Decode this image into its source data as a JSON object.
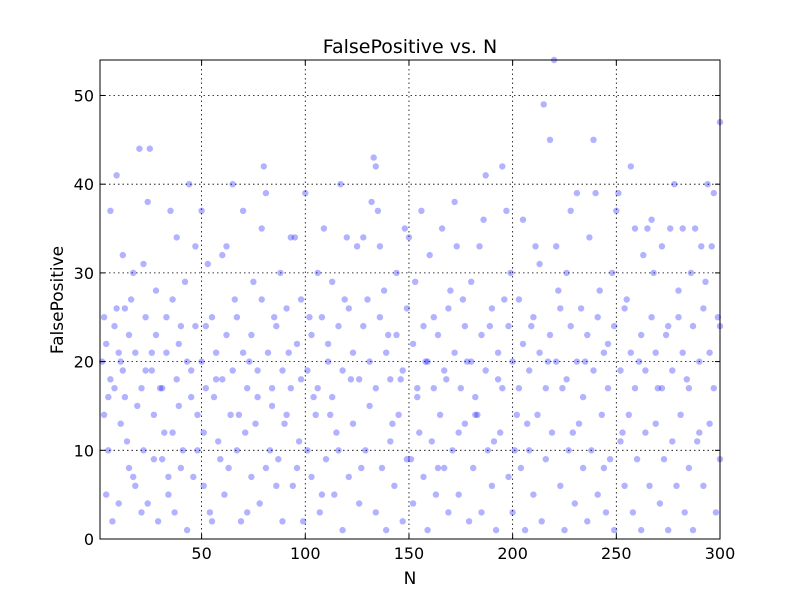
{
  "chart_data": {
    "type": "scatter",
    "title": "FalsePositive vs. N",
    "xlabel": "N",
    "ylabel": "FalsePositive",
    "xlim": [
      1,
      300
    ],
    "ylim": [
      0,
      54
    ],
    "xticks": [
      50,
      100,
      150,
      200,
      250,
      300
    ],
    "yticks": [
      0,
      10,
      20,
      30,
      40,
      50
    ],
    "grid": true,
    "marker_color": "#0000ff",
    "marker_alpha": 0.3,
    "points": [
      [
        2,
        20
      ],
      [
        3,
        25
      ],
      [
        4,
        5
      ],
      [
        5,
        16
      ],
      [
        6,
        37
      ],
      [
        7,
        2
      ],
      [
        8,
        24
      ],
      [
        9,
        41
      ],
      [
        10,
        21
      ],
      [
        11,
        13
      ],
      [
        12,
        32
      ],
      [
        13,
        26
      ],
      [
        14,
        11
      ],
      [
        15,
        8
      ],
      [
        17,
        30
      ],
      [
        18,
        6
      ],
      [
        20,
        44
      ],
      [
        21,
        3
      ],
      [
        22,
        31
      ],
      [
        23,
        19
      ],
      [
        24,
        38
      ],
      [
        25,
        44
      ],
      [
        26,
        21
      ],
      [
        27,
        14
      ],
      [
        28,
        28
      ],
      [
        30,
        17
      ],
      [
        31,
        9
      ],
      [
        33,
        25
      ],
      [
        34,
        5
      ],
      [
        35,
        37
      ],
      [
        36,
        12
      ],
      [
        38,
        34
      ],
      [
        39,
        22
      ],
      [
        40,
        8
      ],
      [
        42,
        29
      ],
      [
        44,
        40
      ],
      [
        45,
        19
      ],
      [
        47,
        33
      ],
      [
        48,
        14
      ],
      [
        50,
        37
      ],
      [
        51,
        6
      ],
      [
        52,
        24
      ],
      [
        53,
        31
      ],
      [
        55,
        2
      ],
      [
        57,
        18
      ],
      [
        58,
        11
      ],
      [
        60,
        32
      ],
      [
        62,
        33
      ],
      [
        63,
        8
      ],
      [
        65,
        40
      ],
      [
        66,
        27
      ],
      [
        68,
        14
      ],
      [
        70,
        37
      ],
      [
        72,
        3
      ],
      [
        73,
        20
      ],
      [
        75,
        29
      ],
      [
        77,
        16
      ],
      [
        79,
        35
      ],
      [
        80,
        42
      ],
      [
        81,
        39
      ],
      [
        83,
        10
      ],
      [
        85,
        25
      ],
      [
        86,
        6
      ],
      [
        88,
        30
      ],
      [
        90,
        13
      ],
      [
        92,
        21
      ],
      [
        93,
        34
      ],
      [
        95,
        34
      ],
      [
        96,
        8
      ],
      [
        98,
        18
      ],
      [
        100,
        39
      ],
      [
        101,
        10
      ],
      [
        102,
        25
      ],
      [
        104,
        16
      ],
      [
        106,
        30
      ],
      [
        108,
        5
      ],
      [
        109,
        35
      ],
      [
        111,
        22
      ],
      [
        113,
        29
      ],
      [
        115,
        12
      ],
      [
        117,
        40
      ],
      [
        119,
        27
      ],
      [
        120,
        34
      ],
      [
        122,
        18
      ],
      [
        125,
        33
      ],
      [
        127,
        8
      ],
      [
        128,
        34
      ],
      [
        130,
        27
      ],
      [
        132,
        38
      ],
      [
        133,
        43
      ],
      [
        134,
        42
      ],
      [
        135,
        37
      ],
      [
        136,
        33
      ],
      [
        138,
        28
      ],
      [
        140,
        23
      ],
      [
        142,
        13
      ],
      [
        144,
        30
      ],
      [
        146,
        18
      ],
      [
        148,
        35
      ],
      [
        150,
        34
      ],
      [
        151,
        9
      ],
      [
        153,
        29
      ],
      [
        155,
        12
      ],
      [
        156,
        37
      ],
      [
        158,
        20
      ],
      [
        160,
        32
      ],
      [
        162,
        25
      ],
      [
        164,
        8
      ],
      [
        166,
        35
      ],
      [
        168,
        18
      ],
      [
        170,
        28
      ],
      [
        172,
        38
      ],
      [
        173,
        33
      ],
      [
        174,
        12
      ],
      [
        176,
        27
      ],
      [
        178,
        20
      ],
      [
        180,
        29
      ],
      [
        182,
        14
      ],
      [
        184,
        33
      ],
      [
        186,
        36
      ],
      [
        187,
        41
      ],
      [
        189,
        24
      ],
      [
        191,
        11
      ],
      [
        193,
        18
      ],
      [
        195,
        42
      ],
      [
        196,
        27
      ],
      [
        197,
        37
      ],
      [
        199,
        30
      ],
      [
        201,
        10
      ],
      [
        203,
        27
      ],
      [
        205,
        36
      ],
      [
        207,
        13
      ],
      [
        209,
        24
      ],
      [
        211,
        33
      ],
      [
        213,
        31
      ],
      [
        215,
        49
      ],
      [
        217,
        20
      ],
      [
        218,
        45
      ],
      [
        220,
        54
      ],
      [
        221,
        33
      ],
      [
        222,
        28
      ],
      [
        224,
        17
      ],
      [
        226,
        30
      ],
      [
        228,
        37
      ],
      [
        229,
        12
      ],
      [
        231,
        39
      ],
      [
        233,
        26
      ],
      [
        235,
        20
      ],
      [
        237,
        34
      ],
      [
        239,
        45
      ],
      [
        240,
        39
      ],
      [
        242,
        28
      ],
      [
        244,
        8
      ],
      [
        246,
        22
      ],
      [
        248,
        30
      ],
      [
        250,
        37
      ],
      [
        251,
        39
      ],
      [
        253,
        12
      ],
      [
        255,
        27
      ],
      [
        257,
        42
      ],
      [
        259,
        35
      ],
      [
        261,
        20
      ],
      [
        263,
        32
      ],
      [
        265,
        35
      ],
      [
        267,
        36
      ],
      [
        268,
        30
      ],
      [
        270,
        17
      ],
      [
        272,
        33
      ],
      [
        274,
        23
      ],
      [
        276,
        35
      ],
      [
        278,
        40
      ],
      [
        280,
        28
      ],
      [
        282,
        35
      ],
      [
        284,
        18
      ],
      [
        286,
        30
      ],
      [
        288,
        35
      ],
      [
        290,
        12
      ],
      [
        291,
        33
      ],
      [
        293,
        29
      ],
      [
        294,
        40
      ],
      [
        296,
        33
      ],
      [
        297,
        39
      ],
      [
        299,
        25
      ],
      [
        300,
        47
      ],
      [
        3,
        14
      ],
      [
        5,
        10
      ],
      [
        8,
        17
      ],
      [
        10,
        4
      ],
      [
        12,
        19
      ],
      [
        15,
        23
      ],
      [
        17,
        7
      ],
      [
        19,
        15
      ],
      [
        22,
        10
      ],
      [
        24,
        4
      ],
      [
        27,
        9
      ],
      [
        29,
        2
      ],
      [
        32,
        12
      ],
      [
        34,
        7
      ],
      [
        37,
        3
      ],
      [
        39,
        15
      ],
      [
        41,
        10
      ],
      [
        43,
        1
      ],
      [
        46,
        7
      ],
      [
        48,
        10
      ],
      [
        51,
        12
      ],
      [
        54,
        3
      ],
      [
        56,
        16
      ],
      [
        59,
        9
      ],
      [
        61,
        5
      ],
      [
        64,
        14
      ],
      [
        67,
        10
      ],
      [
        69,
        2
      ],
      [
        71,
        12
      ],
      [
        74,
        7
      ],
      [
        76,
        13
      ],
      [
        78,
        4
      ],
      [
        81,
        8
      ],
      [
        84,
        15
      ],
      [
        87,
        9
      ],
      [
        89,
        2
      ],
      [
        91,
        14
      ],
      [
        94,
        6
      ],
      [
        97,
        11
      ],
      [
        99,
        2
      ],
      [
        103,
        7
      ],
      [
        105,
        14
      ],
      [
        107,
        3
      ],
      [
        110,
        9
      ],
      [
        112,
        14
      ],
      [
        114,
        5
      ],
      [
        116,
        10
      ],
      [
        118,
        1
      ],
      [
        121,
        7
      ],
      [
        123,
        13
      ],
      [
        126,
        4
      ],
      [
        129,
        10
      ],
      [
        131,
        15
      ],
      [
        134,
        3
      ],
      [
        137,
        8
      ],
      [
        139,
        1
      ],
      [
        141,
        11
      ],
      [
        143,
        6
      ],
      [
        145,
        14
      ],
      [
        147,
        2
      ],
      [
        149,
        9
      ],
      [
        152,
        4
      ],
      [
        154,
        16
      ],
      [
        157,
        7
      ],
      [
        159,
        1
      ],
      [
        161,
        11
      ],
      [
        163,
        5
      ],
      [
        165,
        14
      ],
      [
        167,
        8
      ],
      [
        169,
        3
      ],
      [
        171,
        10
      ],
      [
        174,
        5
      ],
      [
        177,
        13
      ],
      [
        179,
        2
      ],
      [
        181,
        8
      ],
      [
        183,
        14
      ],
      [
        185,
        3
      ],
      [
        188,
        10
      ],
      [
        190,
        6
      ],
      [
        192,
        1
      ],
      [
        194,
        12
      ],
      [
        198,
        7
      ],
      [
        200,
        3
      ],
      [
        202,
        14
      ],
      [
        204,
        8
      ],
      [
        206,
        1
      ],
      [
        208,
        10
      ],
      [
        210,
        5
      ],
      [
        212,
        14
      ],
      [
        214,
        2
      ],
      [
        216,
        9
      ],
      [
        219,
        12
      ],
      [
        223,
        6
      ],
      [
        225,
        1
      ],
      [
        227,
        10
      ],
      [
        230,
        4
      ],
      [
        232,
        13
      ],
      [
        234,
        8
      ],
      [
        236,
        2
      ],
      [
        238,
        10
      ],
      [
        241,
        5
      ],
      [
        243,
        14
      ],
      [
        245,
        3
      ],
      [
        247,
        9
      ],
      [
        249,
        1
      ],
      [
        252,
        11
      ],
      [
        254,
        6
      ],
      [
        256,
        14
      ],
      [
        258,
        3
      ],
      [
        260,
        9
      ],
      [
        262,
        1
      ],
      [
        264,
        12
      ],
      [
        266,
        6
      ],
      [
        269,
        13
      ],
      [
        271,
        4
      ],
      [
        273,
        9
      ],
      [
        275,
        1
      ],
      [
        277,
        11
      ],
      [
        279,
        6
      ],
      [
        281,
        14
      ],
      [
        283,
        3
      ],
      [
        285,
        8
      ],
      [
        287,
        1
      ],
      [
        289,
        11
      ],
      [
        292,
        6
      ],
      [
        295,
        13
      ],
      [
        298,
        3
      ],
      [
        300,
        9
      ],
      [
        4,
        22
      ],
      [
        6,
        18
      ],
      [
        9,
        26
      ],
      [
        11,
        20
      ],
      [
        13,
        16
      ],
      [
        16,
        27
      ],
      [
        18,
        21
      ],
      [
        21,
        17
      ],
      [
        23,
        25
      ],
      [
        26,
        19
      ],
      [
        28,
        23
      ],
      [
        31,
        17
      ],
      [
        33,
        21
      ],
      [
        36,
        27
      ],
      [
        38,
        18
      ],
      [
        40,
        24
      ],
      [
        43,
        20
      ],
      [
        45,
        16
      ],
      [
        47,
        24
      ],
      [
        50,
        20
      ],
      [
        52,
        17
      ],
      [
        55,
        25
      ],
      [
        57,
        21
      ],
      [
        60,
        18
      ],
      [
        62,
        23
      ],
      [
        65,
        19
      ],
      [
        67,
        25
      ],
      [
        70,
        21
      ],
      [
        72,
        17
      ],
      [
        74,
        23
      ],
      [
        77,
        19
      ],
      [
        79,
        27
      ],
      [
        82,
        21
      ],
      [
        84,
        17
      ],
      [
        86,
        24
      ],
      [
        89,
        19
      ],
      [
        91,
        26
      ],
      [
        93,
        17
      ],
      [
        96,
        22
      ],
      [
        98,
        27
      ],
      [
        101,
        19
      ],
      [
        103,
        23
      ],
      [
        106,
        17
      ],
      [
        108,
        25
      ],
      [
        111,
        20
      ],
      [
        113,
        16
      ],
      [
        116,
        24
      ],
      [
        118,
        19
      ],
      [
        121,
        26
      ],
      [
        123,
        21
      ],
      [
        126,
        18
      ],
      [
        128,
        24
      ],
      [
        131,
        20
      ],
      [
        134,
        17
      ],
      [
        136,
        25
      ],
      [
        139,
        21
      ],
      [
        141,
        18
      ],
      [
        144,
        23
      ],
      [
        147,
        19
      ],
      [
        149,
        26
      ],
      [
        152,
        22
      ],
      [
        154,
        17
      ],
      [
        157,
        24
      ],
      [
        159,
        20
      ],
      [
        162,
        17
      ],
      [
        164,
        23
      ],
      [
        167,
        19
      ],
      [
        169,
        26
      ],
      [
        172,
        21
      ],
      [
        175,
        17
      ],
      [
        177,
        24
      ],
      [
        180,
        20
      ],
      [
        182,
        16
      ],
      [
        185,
        23
      ],
      [
        187,
        19
      ],
      [
        190,
        26
      ],
      [
        193,
        21
      ],
      [
        195,
        17
      ],
      [
        198,
        24
      ],
      [
        200,
        20
      ],
      [
        203,
        17
      ],
      [
        205,
        22
      ],
      [
        208,
        19
      ],
      [
        210,
        25
      ],
      [
        213,
        21
      ],
      [
        216,
        17
      ],
      [
        218,
        23
      ],
      [
        221,
        20
      ],
      [
        223,
        26
      ],
      [
        226,
        18
      ],
      [
        228,
        24
      ],
      [
        231,
        20
      ],
      [
        234,
        16
      ],
      [
        236,
        23
      ],
      [
        239,
        19
      ],
      [
        241,
        25
      ],
      [
        244,
        21
      ],
      [
        246,
        17
      ],
      [
        249,
        24
      ],
      [
        252,
        19
      ],
      [
        254,
        26
      ],
      [
        257,
        21
      ],
      [
        259,
        17
      ],
      [
        262,
        23
      ],
      [
        264,
        19
      ],
      [
        267,
        25
      ],
      [
        269,
        21
      ],
      [
        272,
        17
      ],
      [
        275,
        24
      ],
      [
        277,
        19
      ],
      [
        280,
        25
      ],
      [
        282,
        21
      ],
      [
        285,
        17
      ],
      [
        287,
        24
      ],
      [
        290,
        20
      ],
      [
        292,
        26
      ],
      [
        295,
        21
      ],
      [
        297,
        17
      ],
      [
        300,
        24
      ]
    ]
  }
}
